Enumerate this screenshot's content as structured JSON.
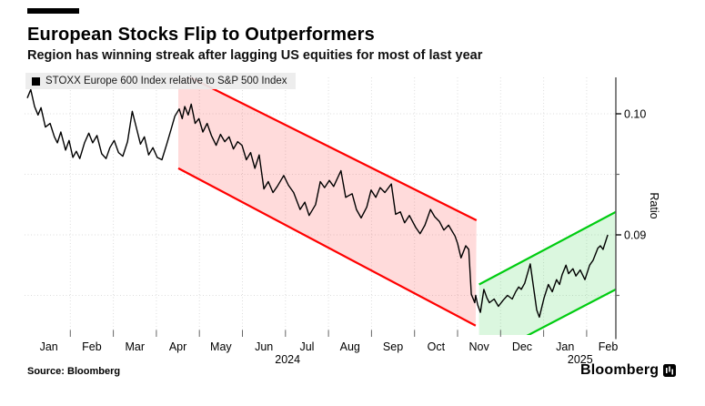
{
  "header": {
    "title": "European Stocks Flip to Outperformers",
    "subtitle": "Region has winning streak after lagging US equities for most of last year"
  },
  "legend": {
    "label": "STOXX Europe 600 Index relative to S&P 500 Index"
  },
  "footer": {
    "source": "Source: Bloomberg",
    "brand": "Bloomberg"
  },
  "colors": {
    "line": "#000000",
    "downtrend": "#ff0000",
    "downtrend_fill": "rgba(255,0,0,0.14)",
    "uptrend": "#00cc11",
    "uptrend_fill": "rgba(0,200,30,0.14)",
    "grid": "#dcdcdc",
    "axis": "#595959",
    "tick": "#666666",
    "label": "#000000",
    "legend_bg": "#ececec"
  },
  "chart_data": {
    "type": "line",
    "title": "European Stocks Flip to Outperformers",
    "subtitle": "Region has winning streak after lagging US equities for most of last year",
    "series_name": "STOXX Europe 600 Index relative to S&P 500 Index",
    "ylabel": "Ratio",
    "x_unit": "months since 2024-01-01",
    "xlim": [
      0,
      13.68
    ],
    "ylim": [
      0.0817,
      0.103
    ],
    "grid": "dotted",
    "legend_position": "top-left",
    "x_tick_labels": [
      "Jan",
      "Feb",
      "Mar",
      "Apr",
      "May",
      "Jun",
      "Jul",
      "Aug",
      "Sep",
      "Oct",
      "Nov",
      "Dec",
      "Jan",
      "Feb"
    ],
    "year_labels": [
      {
        "text": "2024",
        "t": 6.05
      },
      {
        "text": "2025",
        "t": 12.85
      }
    ],
    "y_ticks_labeled": [
      {
        "value": 0.1,
        "label": "0.10"
      },
      {
        "value": 0.09,
        "label": "0.09"
      }
    ],
    "y_ticks_minor": [
      0.095,
      0.085
    ],
    "channels": [
      {
        "name": "downtrend-channel",
        "upper": [
          [
            3.51,
            0.1035
          ],
          [
            10.44,
            0.0912
          ]
        ],
        "lower": [
          [
            3.51,
            0.0955
          ],
          [
            10.42,
            0.0825
          ]
        ]
      },
      {
        "name": "uptrend-channel",
        "upper": [
          [
            10.5,
            0.0859
          ],
          [
            13.68,
            0.0919
          ]
        ],
        "lower": [
          [
            10.5,
            0.0796
          ],
          [
            13.68,
            0.0855
          ]
        ]
      }
    ],
    "points": [
      [
        0.0,
        0.1013
      ],
      [
        0.08,
        0.102
      ],
      [
        0.17,
        0.1006
      ],
      [
        0.25,
        0.0999
      ],
      [
        0.32,
        0.1005
      ],
      [
        0.42,
        0.0989
      ],
      [
        0.53,
        0.0992
      ],
      [
        0.63,
        0.0981
      ],
      [
        0.7,
        0.0976
      ],
      [
        0.78,
        0.0985
      ],
      [
        0.89,
        0.097
      ],
      [
        0.97,
        0.0978
      ],
      [
        1.06,
        0.0964
      ],
      [
        1.14,
        0.0969
      ],
      [
        1.22,
        0.0963
      ],
      [
        1.33,
        0.0976
      ],
      [
        1.43,
        0.0984
      ],
      [
        1.52,
        0.0976
      ],
      [
        1.62,
        0.0982
      ],
      [
        1.73,
        0.0967
      ],
      [
        1.83,
        0.0963
      ],
      [
        1.92,
        0.0972
      ],
      [
        2.02,
        0.0978
      ],
      [
        2.12,
        0.0968
      ],
      [
        2.22,
        0.0965
      ],
      [
        2.33,
        0.0977
      ],
      [
        2.44,
        0.1002
      ],
      [
        2.54,
        0.0988
      ],
      [
        2.63,
        0.0975
      ],
      [
        2.72,
        0.0981
      ],
      [
        2.82,
        0.0966
      ],
      [
        2.92,
        0.0972
      ],
      [
        3.02,
        0.0964
      ],
      [
        3.13,
        0.0962
      ],
      [
        3.24,
        0.0975
      ],
      [
        3.34,
        0.0987
      ],
      [
        3.43,
        0.0998
      ],
      [
        3.53,
        0.1004
      ],
      [
        3.6,
        0.0996
      ],
      [
        3.66,
        0.1006
      ],
      [
        3.74,
        0.0999
      ],
      [
        3.81,
        0.1008
      ],
      [
        3.9,
        0.0992
      ],
      [
        3.99,
        0.0996
      ],
      [
        4.08,
        0.0985
      ],
      [
        4.18,
        0.0992
      ],
      [
        4.28,
        0.0982
      ],
      [
        4.39,
        0.0974
      ],
      [
        4.49,
        0.0983
      ],
      [
        4.59,
        0.0977
      ],
      [
        4.69,
        0.0981
      ],
      [
        4.79,
        0.0971
      ],
      [
        4.89,
        0.0977
      ],
      [
        4.99,
        0.0974
      ],
      [
        5.09,
        0.0962
      ],
      [
        5.19,
        0.0968
      ],
      [
        5.29,
        0.0955
      ],
      [
        5.39,
        0.0966
      ],
      [
        5.5,
        0.0938
      ],
      [
        5.6,
        0.0944
      ],
      [
        5.71,
        0.0935
      ],
      [
        5.81,
        0.094
      ],
      [
        5.96,
        0.0949
      ],
      [
        6.07,
        0.0941
      ],
      [
        6.19,
        0.0935
      ],
      [
        6.34,
        0.0921
      ],
      [
        6.45,
        0.0927
      ],
      [
        6.55,
        0.0916
      ],
      [
        6.7,
        0.0925
      ],
      [
        6.81,
        0.0944
      ],
      [
        6.91,
        0.0939
      ],
      [
        7.02,
        0.0945
      ],
      [
        7.12,
        0.094
      ],
      [
        7.29,
        0.0953
      ],
      [
        7.4,
        0.0931
      ],
      [
        7.55,
        0.0934
      ],
      [
        7.65,
        0.0921
      ],
      [
        7.76,
        0.0914
      ],
      [
        7.89,
        0.0923
      ],
      [
        7.99,
        0.0937
      ],
      [
        8.1,
        0.0931
      ],
      [
        8.2,
        0.0939
      ],
      [
        8.31,
        0.0935
      ],
      [
        8.46,
        0.0942
      ],
      [
        8.56,
        0.0917
      ],
      [
        8.67,
        0.0919
      ],
      [
        8.77,
        0.091
      ],
      [
        8.88,
        0.0916
      ],
      [
        9.03,
        0.0906
      ],
      [
        9.13,
        0.0901
      ],
      [
        9.24,
        0.0908
      ],
      [
        9.37,
        0.0921
      ],
      [
        9.47,
        0.0915
      ],
      [
        9.58,
        0.0911
      ],
      [
        9.68,
        0.0904
      ],
      [
        9.79,
        0.0908
      ],
      [
        9.94,
        0.0899
      ],
      [
        10.0,
        0.0893
      ],
      [
        10.08,
        0.0881
      ],
      [
        10.19,
        0.0891
      ],
      [
        10.26,
        0.0888
      ],
      [
        10.32,
        0.0851
      ],
      [
        10.4,
        0.0844
      ],
      [
        10.42,
        0.085
      ],
      [
        10.47,
        0.0842
      ],
      [
        10.53,
        0.0836
      ],
      [
        10.61,
        0.0855
      ],
      [
        10.68,
        0.0848
      ],
      [
        10.74,
        0.0844
      ],
      [
        10.85,
        0.0847
      ],
      [
        10.95,
        0.0841
      ],
      [
        11.06,
        0.0846
      ],
      [
        11.16,
        0.085
      ],
      [
        11.27,
        0.0847
      ],
      [
        11.35,
        0.0853
      ],
      [
        11.42,
        0.0857
      ],
      [
        11.48,
        0.0855
      ],
      [
        11.56,
        0.086
      ],
      [
        11.69,
        0.0876
      ],
      [
        11.84,
        0.0838
      ],
      [
        11.9,
        0.0832
      ],
      [
        12.01,
        0.0848
      ],
      [
        12.11,
        0.0859
      ],
      [
        12.2,
        0.0853
      ],
      [
        12.3,
        0.0863
      ],
      [
        12.37,
        0.0859
      ],
      [
        12.43,
        0.0867
      ],
      [
        12.52,
        0.0875
      ],
      [
        12.58,
        0.0868
      ],
      [
        12.68,
        0.0872
      ],
      [
        12.75,
        0.0866
      ],
      [
        12.85,
        0.0871
      ],
      [
        12.96,
        0.0863
      ],
      [
        13.07,
        0.0875
      ],
      [
        13.15,
        0.0879
      ],
      [
        13.26,
        0.0889
      ],
      [
        13.32,
        0.0891
      ],
      [
        13.38,
        0.0888
      ],
      [
        13.49,
        0.09
      ]
    ]
  }
}
